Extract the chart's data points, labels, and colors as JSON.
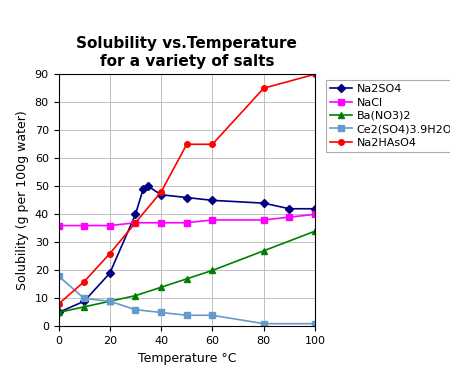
{
  "title": "Solubility vs.Temperature\nfor a variety of salts",
  "xlabel": "Temperature °C",
  "ylabel": "Solubility (g per 100g water)",
  "series": {
    "Na2SO4": {
      "x": [
        0,
        10,
        20,
        30,
        33,
        35,
        40,
        50,
        60,
        80,
        90,
        100
      ],
      "y": [
        5,
        9,
        19,
        40,
        49,
        50,
        47,
        46,
        45,
        44,
        42,
        42
      ],
      "color": "#000080",
      "marker": "D",
      "markersize": 4,
      "linewidth": 1.2
    },
    "NaCl": {
      "x": [
        0,
        10,
        20,
        30,
        40,
        50,
        60,
        80,
        90,
        100
      ],
      "y": [
        36,
        36,
        36,
        37,
        37,
        37,
        38,
        38,
        39,
        40
      ],
      "color": "#FF00FF",
      "marker": "s",
      "markersize": 4,
      "linewidth": 1.2
    },
    "Ba(NO3)2": {
      "x": [
        0,
        10,
        20,
        30,
        40,
        50,
        60,
        80,
        100
      ],
      "y": [
        5,
        7,
        9,
        11,
        14,
        17,
        20,
        27,
        34
      ],
      "color": "#008000",
      "marker": "^",
      "markersize": 4,
      "linewidth": 1.2
    },
    "Ce2(SO4)3.9H2O": {
      "x": [
        0,
        10,
        20,
        30,
        40,
        50,
        60,
        80,
        100
      ],
      "y": [
        18,
        10,
        9,
        6,
        5,
        4,
        4,
        1,
        1
      ],
      "color": "#6699CC",
      "marker": "s",
      "markersize": 4,
      "linewidth": 1.2
    },
    "Na2HAsO4": {
      "x": [
        0,
        10,
        20,
        30,
        40,
        50,
        60,
        80,
        100
      ],
      "y": [
        8,
        16,
        26,
        37,
        48,
        65,
        65,
        85,
        90
      ],
      "color": "#FF0000",
      "marker": "o",
      "markersize": 4,
      "linewidth": 1.2
    }
  },
  "xlim": [
    0,
    100
  ],
  "ylim": [
    0,
    90
  ],
  "xticks": [
    0,
    20,
    40,
    60,
    80,
    100
  ],
  "yticks": [
    0,
    10,
    20,
    30,
    40,
    50,
    60,
    70,
    80,
    90
  ],
  "grid_color": "#C0C0C0",
  "bg_color": "#FFFFFF",
  "plot_bg_color": "#FFFFFF",
  "title_fontsize": 11,
  "axis_label_fontsize": 9,
  "tick_fontsize": 8,
  "legend_fontsize": 8
}
